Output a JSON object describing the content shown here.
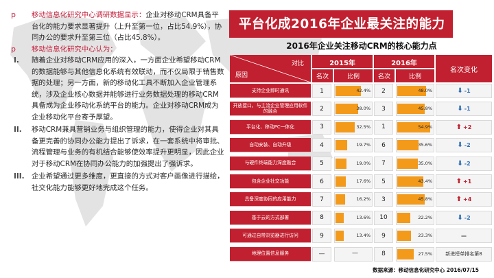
{
  "left": {
    "survey_marker": "p",
    "survey_lead": "移动信息化研究中心调研数据显示：",
    "survey_text": "企业对移动CRM具备平台化的能力要求显著提升（上升至第一位，占比54.9%），协同办公的要求升至第三位（占比45.8%）。",
    "view_marker": "p",
    "view_lead": "移动信息化研究中心认为：",
    "points": [
      {
        "num": "I.",
        "text": "随着企业对移动CRM应用的深入，一方面企业希望移动CRM的数据能够与其他信息化系统有效联动，而不仅局限于销售数据的处理；另一方面，新的移动化工具不断加入企业管理系统，涉及企业核心数据并能够进行业务数据处理的移动CRM具备成为企业移动化系统平台的能力。企业对移动CRM成为企业移动化平台寄予厚望。"
      },
      {
        "num": "II.",
        "text": "移动CRM兼具营销业务与组织管理的能力，使得企业对其具备更完善的协同办公能力提出了诉求，在一套系统中将审批、流程管理与业务的有机结合能够使效率提升更明显，因此企业对于移动CRM在协同办公能力的加强提出了强诉求。"
      },
      {
        "num": "III.",
        "text": "企业希望通过更多维度，更直接的方式对客户画像进行描绘，社交化能力能够更好地完成这个任务。"
      }
    ]
  },
  "title": "平台化成2016年企业最关注的能力",
  "table": {
    "subtitle": "2016年企业关注移动CRM的核心能力点",
    "header_compare": "对比",
    "header_reason": "原因",
    "year_2015": "2015年",
    "year_2016": "2016年",
    "col_rank": "名次",
    "col_ratio": "比例",
    "col_change": "名次变化",
    "rows": [
      {
        "name": "支持企业即时通讯",
        "r15": "1",
        "p15": "42.4%",
        "v15": 42.4,
        "r16": "2",
        "p16": "48.0%",
        "v16": 48.0,
        "dir": "down",
        "chg": "-1"
      },
      {
        "name": "开放接口，与主流企业管理应用软件的融合",
        "r15": "2",
        "p15": "38.0%",
        "v15": 38.0,
        "r16": "3",
        "p16": "45.8%",
        "v16": 45.8,
        "dir": "down",
        "chg": "-1"
      },
      {
        "name": "平台化、移动PC一体化",
        "r15": "3",
        "p15": "32.5%",
        "v15": 32.5,
        "r16": "1",
        "p16": "54.9%",
        "v16": 54.9,
        "dir": "up",
        "chg": "+2"
      },
      {
        "name": "自动安装、自动升级",
        "r15": "4",
        "p15": "19.7%",
        "v15": 19.7,
        "r16": "6",
        "p16": "35.6%",
        "v16": 35.6,
        "dir": "down",
        "chg": "-2"
      },
      {
        "name": "与硬件终端能力深度融合",
        "r15": "5",
        "p15": "19.0%",
        "v15": 19.0,
        "r16": "7",
        "p16": "35.0%",
        "v16": 35.0,
        "dir": "down",
        "chg": "-2"
      },
      {
        "name": "包含企业社交功能",
        "r15": "6",
        "p15": "17.6%",
        "v15": 17.6,
        "r16": "5",
        "p16": "43.4%",
        "v16": 43.4,
        "dir": "up",
        "chg": "+1"
      },
      {
        "name": "具备深度协同的应用能力",
        "r15": "7",
        "p15": "16.2%",
        "v15": 16.2,
        "r16": "3",
        "p16": "45.8%",
        "v16": 45.8,
        "dir": "up",
        "chg": "+4"
      },
      {
        "name": "基于云的方式部署",
        "r15": "8",
        "p15": "13.6%",
        "v15": 13.6,
        "r16": "10",
        "p16": "22.2%",
        "v16": 22.2,
        "dir": "down",
        "chg": "-2"
      },
      {
        "name": "可通过自带浏览器进行访问",
        "r15": "9",
        "p15": "13.4%",
        "v15": 13.4,
        "r16": "9",
        "p16": "23.3%",
        "v16": 23.3,
        "dir": "flat",
        "chg": "—"
      },
      {
        "name": "地理位置信息服务",
        "r15": "—",
        "p15": "—",
        "v15": 0,
        "r16": "8",
        "p16": "27.5%",
        "v16": 27.5,
        "dir": "new",
        "chg": "新进榜单排名第8"
      }
    ]
  },
  "source": "数据来源：移动信息化研究中心 2016/07/15",
  "colors": {
    "brand_red": "#c0202f",
    "bar_orange": "#f39a1b",
    "down_blue": "#2f6fb5"
  }
}
